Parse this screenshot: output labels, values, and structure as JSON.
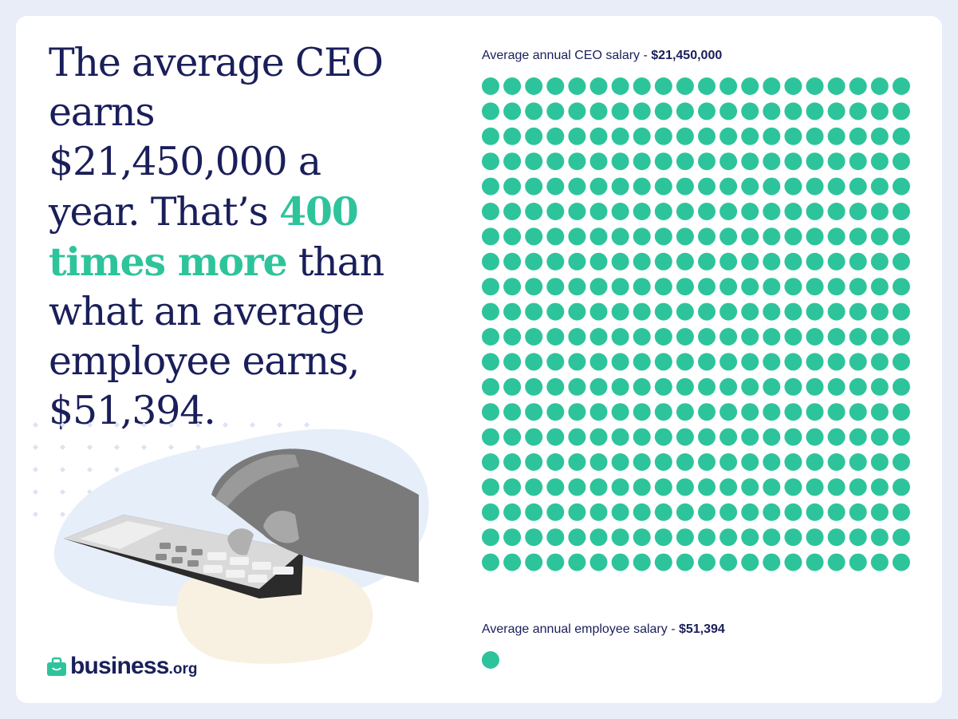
{
  "headline": {
    "part1": "The average CEO earns $21,450,000 a year. That’s ",
    "highlight": "400 times more",
    "part2": " than what an average employee earns, $51,394."
  },
  "colors": {
    "accent": "#2ec49b",
    "navy": "#1a1f5a",
    "page_bg": "#e9edf8"
  },
  "chart_data": {
    "type": "pictogram",
    "series": [
      {
        "label": "Average annual CEO salary - ",
        "value_text": "$21,450,000",
        "value": 21450000,
        "dots": 400
      },
      {
        "label": "Average annual employee salary - ",
        "value_text": "$51,394",
        "value": 51394,
        "dots": 1
      }
    ],
    "grid": {
      "columns": 20,
      "rows": 20
    },
    "dot_color": "#2ec49b"
  },
  "logo": {
    "name": "business",
    "tld": ".org",
    "icon": "briefcase-icon"
  },
  "illustration": {
    "subject": "hand-on-calculator-photo"
  }
}
